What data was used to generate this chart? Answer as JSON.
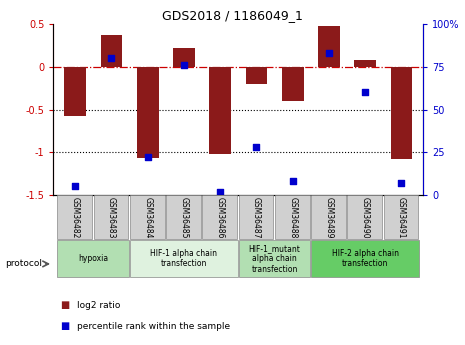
{
  "title": "GDS2018 / 1186049_1",
  "samples": [
    "GSM36482",
    "GSM36483",
    "GSM36484",
    "GSM36485",
    "GSM36486",
    "GSM36487",
    "GSM36488",
    "GSM36489",
    "GSM36490",
    "GSM36491"
  ],
  "log2_ratio": [
    -0.57,
    0.37,
    -1.07,
    0.22,
    -1.02,
    -0.2,
    -0.4,
    0.48,
    0.08,
    -1.08
  ],
  "percentile_rank": [
    5,
    80,
    22,
    76,
    2,
    28,
    8,
    83,
    60,
    7
  ],
  "bar_color": "#8B1A1A",
  "dot_color": "#0000CD",
  "ylim_left": [
    -1.5,
    0.5
  ],
  "ylim_right": [
    0,
    100
  ],
  "hline_0_color": "#CC0000",
  "hline_0_style": "-.",
  "hline_05_color": "black",
  "hline_05_style": ":",
  "hline_1_color": "black",
  "hline_1_style": ":",
  "protocols": [
    {
      "label": "hypoxia",
      "start": 0,
      "end": 2,
      "color": "#b2dfb2"
    },
    {
      "label": "HIF-1 alpha chain\ntransfection",
      "start": 2,
      "end": 5,
      "color": "#dff2df"
    },
    {
      "label": "HIF-1_mutant\nalpha chain\ntransfection",
      "start": 5,
      "end": 7,
      "color": "#b2dfb2"
    },
    {
      "label": "HIF-2 alpha chain\ntransfection",
      "start": 7,
      "end": 10,
      "color": "#66cc66"
    }
  ],
  "legend_bar_label": "log2 ratio",
  "legend_dot_label": "percentile rank within the sample",
  "protocol_label": "protocol",
  "right_tick_labels": [
    "0",
    "25",
    "50",
    "75",
    "100%"
  ],
  "right_tick_values": [
    0,
    25,
    50,
    75,
    100
  ],
  "left_tick_values": [
    -1.5,
    -1.0,
    -0.5,
    0.0,
    0.5
  ],
  "left_tick_labels": [
    "-1.5",
    "-1",
    "-0.5",
    "0",
    "0.5"
  ]
}
